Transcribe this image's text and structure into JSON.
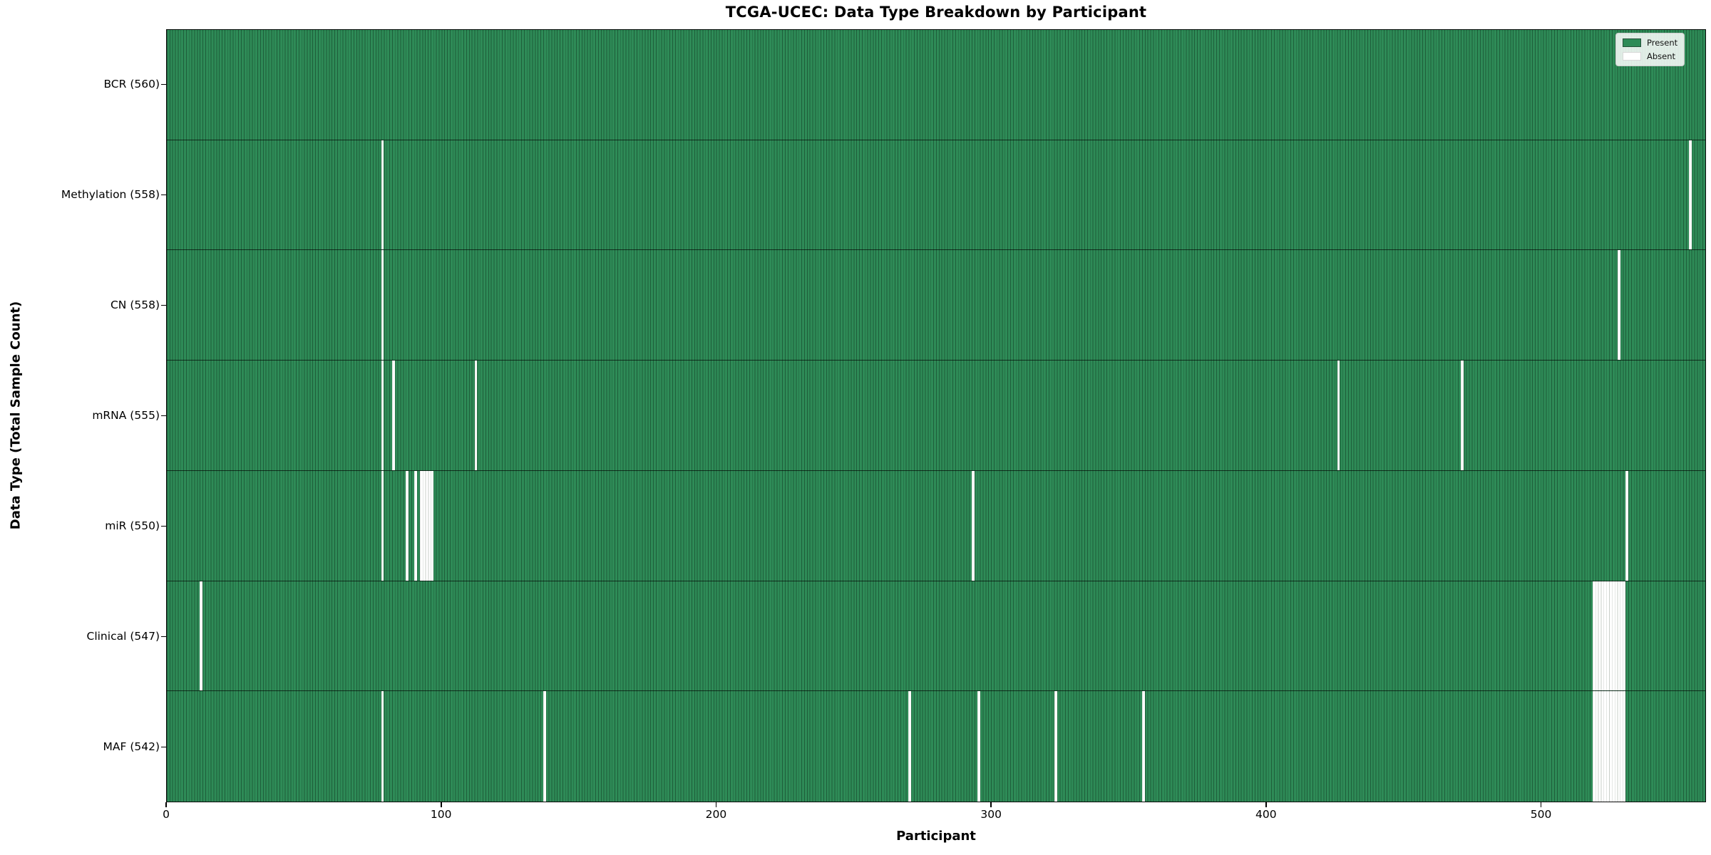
{
  "title": "TCGA-UCEC: Data Type Breakdown by Participant",
  "xlabel": "Participant",
  "ylabel": "Data Type (Total Sample Count)",
  "legend": {
    "present_label": "Present",
    "absent_label": "Absent"
  },
  "colors": {
    "present": "#2e8b57",
    "present_edge": "#1e5e3a",
    "absent": "#ffffff",
    "absent_edge": "#c9cfc9",
    "row_separator": "rgba(0,0,0,0.65)",
    "axis": "#0a0a0a"
  },
  "chart_data": {
    "type": "heatmap",
    "title": "TCGA-UCEC: Data Type Breakdown by Participant",
    "xlabel": "Participant",
    "ylabel": "Data Type (Total Sample Count)",
    "x_ticks": [
      0,
      100,
      200,
      300,
      400,
      500
    ],
    "x_range": [
      0,
      560
    ],
    "n_participants": 560,
    "legend_entries": [
      {
        "label": "Present",
        "color": "#2e8b57"
      },
      {
        "label": "Absent",
        "color": "#ffffff"
      }
    ],
    "legend_position": "upper right",
    "grid": false,
    "rows": [
      {
        "name": "BCR",
        "label": "BCR (560)",
        "total": 560,
        "absent_participants": []
      },
      {
        "name": "Methylation",
        "label": "Methylation (558)",
        "total": 558,
        "absent_participants": [
          78,
          554
        ]
      },
      {
        "name": "CN",
        "label": "CN (558)",
        "total": 558,
        "absent_participants": [
          78,
          528
        ]
      },
      {
        "name": "mRNA",
        "label": "mRNA (555)",
        "total": 555,
        "absent_participants": [
          78,
          82,
          112,
          426,
          471
        ]
      },
      {
        "name": "miR",
        "label": "miR (550)",
        "total": 550,
        "absent_participants": [
          78,
          87,
          90,
          92,
          93,
          94,
          95,
          96,
          293,
          531
        ]
      },
      {
        "name": "Clinical",
        "label": "Clinical (547)",
        "total": 547,
        "absent_participants": [
          12,
          519,
          520,
          521,
          522,
          523,
          524,
          525,
          526,
          527,
          528,
          529,
          530
        ]
      },
      {
        "name": "MAF",
        "label": "MAF (542)",
        "total": 542,
        "absent_participants": [
          78,
          137,
          270,
          295,
          323,
          355,
          519,
          520,
          521,
          522,
          523,
          524,
          525,
          526,
          527,
          528,
          529,
          530
        ]
      }
    ]
  }
}
